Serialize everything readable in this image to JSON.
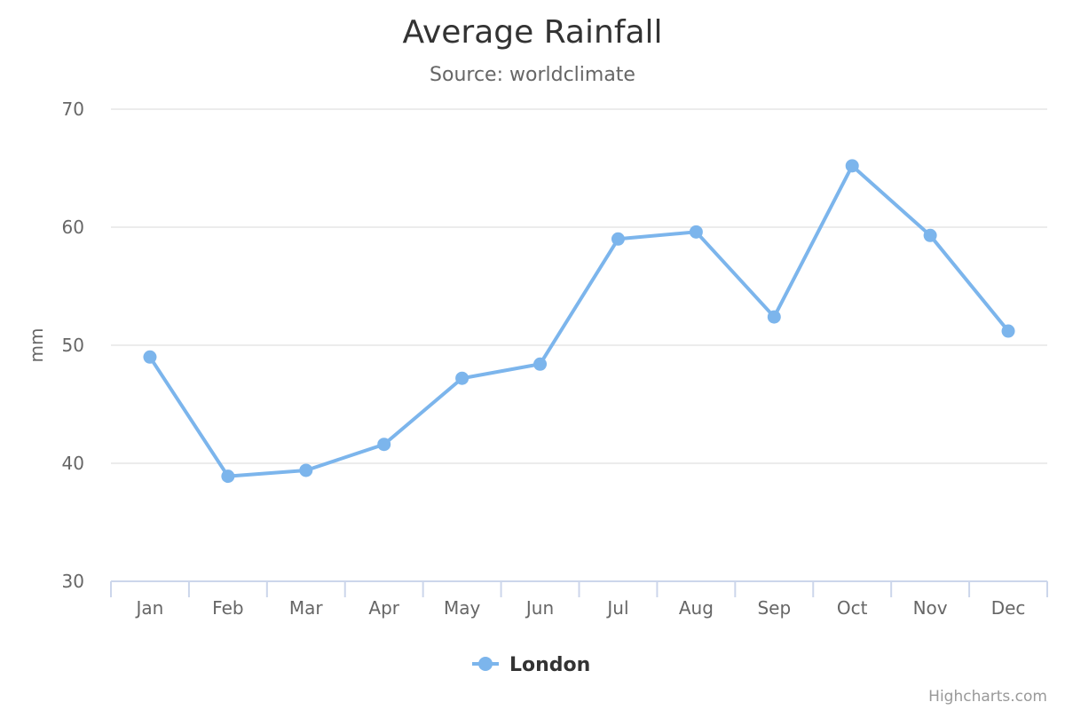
{
  "chart_data": {
    "type": "line",
    "title": "Average Rainfall",
    "subtitle": "Source: worldclimate",
    "categories": [
      "Jan",
      "Feb",
      "Mar",
      "Apr",
      "May",
      "Jun",
      "Jul",
      "Aug",
      "Sep",
      "Oct",
      "Nov",
      "Dec"
    ],
    "series": [
      {
        "name": "London",
        "values": [
          49.0,
          38.9,
          39.4,
          41.6,
          47.2,
          48.4,
          59.0,
          59.6,
          52.4,
          65.2,
          59.3,
          51.2
        ]
      }
    ],
    "ylabel": "mm",
    "xlabel": "",
    "ylim": [
      30,
      70
    ],
    "yticks": [
      30,
      40,
      50,
      60,
      70
    ],
    "grid": true,
    "legend": "bottom-center",
    "colors": {
      "series": "#7cb5ec",
      "grid": "#e6e6e6",
      "axis": "#ccd6eb"
    }
  },
  "credits": "Highcharts.com"
}
